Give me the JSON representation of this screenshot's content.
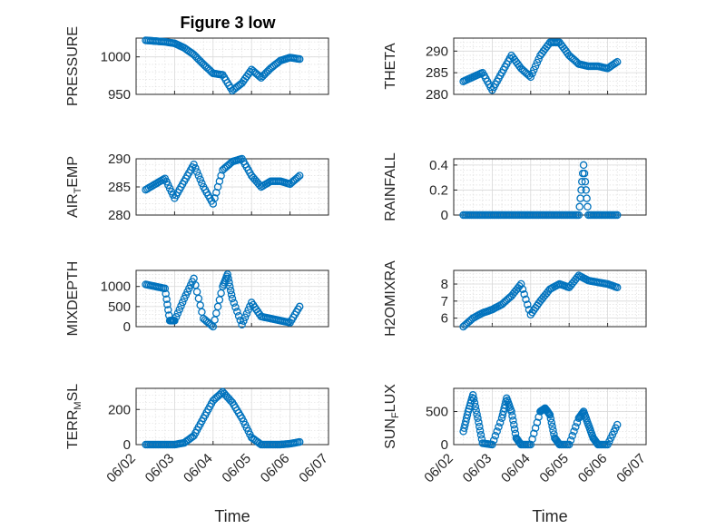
{
  "figure": {
    "title": "Figure 3 low",
    "marker_color": "#0072BD"
  },
  "chart_data": [
    {
      "id": "pressure",
      "type": "scatter",
      "title": "Figure 3 low",
      "ylabel": "PRESSURE",
      "ylabel_parts": [
        "PRESSURE"
      ],
      "xlim": [
        "06/02",
        "06/07"
      ],
      "ylim": [
        950,
        1025
      ],
      "yticks": [
        950,
        1000
      ],
      "xticks_labeled": false,
      "xlabel": "",
      "grid": "on",
      "x": [
        "06/02 06:00",
        "06/02 12:00",
        "06/02 18:00",
        "06/03 00:00",
        "06/03 06:00",
        "06/03 12:00",
        "06/03 18:00",
        "06/04 00:00",
        "06/04 06:00",
        "06/04 12:00",
        "06/04 18:00",
        "06/05 00:00",
        "06/05 06:00",
        "06/05 12:00",
        "06/05 18:00",
        "06/06 00:00",
        "06/06 06:00"
      ],
      "y": [
        1022,
        1021,
        1020,
        1018,
        1012,
        1003,
        990,
        978,
        976,
        955,
        965,
        983,
        972,
        985,
        995,
        999,
        997
      ]
    },
    {
      "id": "theta",
      "type": "scatter",
      "title": "",
      "ylabel": "THETA",
      "ylabel_parts": [
        "THETA"
      ],
      "xlim": [
        "06/02",
        "06/07"
      ],
      "ylim": [
        280,
        293
      ],
      "yticks": [
        280,
        285,
        290
      ],
      "xticks_labeled": false,
      "xlabel": "",
      "grid": "on",
      "x": [
        "06/02 06:00",
        "06/02 12:00",
        "06/02 18:00",
        "06/03 00:00",
        "06/03 06:00",
        "06/03 12:00",
        "06/03 18:00",
        "06/04 00:00",
        "06/04 06:00",
        "06/04 12:00",
        "06/04 18:00",
        "06/05 00:00",
        "06/05 06:00",
        "06/05 12:00",
        "06/05 18:00",
        "06/06 00:00",
        "06/06 06:00"
      ],
      "y": [
        283,
        284,
        285,
        281,
        285,
        289,
        286,
        284,
        289,
        292,
        292,
        289,
        287,
        286.5,
        286.5,
        286,
        287.5
      ]
    },
    {
      "id": "air_temp",
      "type": "scatter",
      "title": "",
      "ylabel": "AIR_TEMP",
      "ylabel_parts": [
        "AIR",
        "T",
        "EMP"
      ],
      "xlim": [
        "06/02",
        "06/07"
      ],
      "ylim": [
        280,
        290
      ],
      "yticks": [
        280,
        285,
        290
      ],
      "xticks_labeled": false,
      "xlabel": "",
      "grid": "on",
      "x": [
        "06/02 06:00",
        "06/02 12:00",
        "06/02 18:00",
        "06/03 00:00",
        "06/03 06:00",
        "06/03 12:00",
        "06/03 18:00",
        "06/04 00:00",
        "06/04 06:00",
        "06/04 12:00",
        "06/04 18:00",
        "06/05 00:00",
        "06/05 06:00",
        "06/05 12:00",
        "06/05 18:00",
        "06/06 00:00",
        "06/06 06:00"
      ],
      "y": [
        284.5,
        285.5,
        286.5,
        283,
        286,
        289,
        285,
        282,
        288,
        289.5,
        290,
        287,
        285,
        286,
        286,
        285.5,
        287
      ]
    },
    {
      "id": "rainfall",
      "type": "scatter",
      "title": "",
      "ylabel": "RAINFALL",
      "ylabel_parts": [
        "RAINFALL"
      ],
      "xlim": [
        "06/02",
        "06/07"
      ],
      "ylim": [
        0,
        0.45
      ],
      "yticks": [
        0,
        0.2,
        0.4
      ],
      "xticks_labeled": false,
      "xlabel": "",
      "grid": "on",
      "x": [
        "06/02 06:00",
        "06/02 12:00",
        "06/02 18:00",
        "06/03 00:00",
        "06/03 06:00",
        "06/03 12:00",
        "06/03 18:00",
        "06/04 00:00",
        "06/04 06:00",
        "06/04 12:00",
        "06/04 18:00",
        "06/05 00:00",
        "06/05 06:00",
        "06/05 09:00",
        "06/05 12:00",
        "06/05 18:00",
        "06/06 00:00",
        "06/06 06:00"
      ],
      "y": [
        0,
        0,
        0,
        0,
        0,
        0,
        0,
        0,
        0,
        0,
        0,
        0,
        0,
        0.4,
        0,
        0,
        0,
        0
      ]
    },
    {
      "id": "mixdepth",
      "type": "scatter",
      "title": "",
      "ylabel": "MIXDEPTH",
      "ylabel_parts": [
        "MIXDEPTH"
      ],
      "xlim": [
        "06/02",
        "06/07"
      ],
      "ylim": [
        0,
        1400
      ],
      "yticks": [
        0,
        500,
        1000
      ],
      "xticks_labeled": false,
      "xlabel": "",
      "grid": "on",
      "x": [
        "06/02 06:00",
        "06/02 12:00",
        "06/02 18:00",
        "06/02 21:00",
        "06/03 00:00",
        "06/03 06:00",
        "06/03 12:00",
        "06/03 18:00",
        "06/04 00:00",
        "06/04 06:00",
        "06/04 09:00",
        "06/04 12:00",
        "06/04 18:00",
        "06/05 00:00",
        "06/05 06:00",
        "06/05 12:00",
        "06/05 18:00",
        "06/06 00:00",
        "06/06 06:00"
      ],
      "y": [
        1050,
        1000,
        950,
        150,
        150,
        700,
        1200,
        200,
        0,
        1000,
        1300,
        700,
        50,
        600,
        250,
        200,
        150,
        100,
        500
      ]
    },
    {
      "id": "h2omixra",
      "type": "scatter",
      "title": "",
      "ylabel": "H2OMIXRA",
      "ylabel_parts": [
        "H2OMIXRA"
      ],
      "xlim": [
        "06/02",
        "06/07"
      ],
      "ylim": [
        5.5,
        8.8
      ],
      "yticks": [
        6,
        7,
        8
      ],
      "xticks_labeled": false,
      "xlabel": "",
      "grid": "on",
      "x": [
        "06/02 06:00",
        "06/02 12:00",
        "06/02 18:00",
        "06/03 00:00",
        "06/03 06:00",
        "06/03 12:00",
        "06/03 18:00",
        "06/04 00:00",
        "06/04 06:00",
        "06/04 12:00",
        "06/04 18:00",
        "06/05 00:00",
        "06/05 06:00",
        "06/05 12:00",
        "06/05 18:00",
        "06/06 00:00",
        "06/06 06:00"
      ],
      "y": [
        5.5,
        6,
        6.3,
        6.5,
        6.8,
        7.3,
        8,
        6.2,
        7,
        7.7,
        8,
        7.8,
        8.5,
        8.2,
        8.1,
        8,
        7.8
      ]
    },
    {
      "id": "terr_msl",
      "type": "scatter",
      "title": "",
      "ylabel": "TERR_MSL",
      "ylabel_parts": [
        "TERR",
        "M",
        "SL"
      ],
      "xlim": [
        "06/02",
        "06/07"
      ],
      "ylim": [
        0,
        320
      ],
      "yticks": [
        0,
        200
      ],
      "xticks": [
        "06/02",
        "06/03",
        "06/04",
        "06/05",
        "06/06",
        "06/07"
      ],
      "xticks_labeled": true,
      "xlabel": "Time",
      "grid": "on",
      "x": [
        "06/02 06:00",
        "06/02 12:00",
        "06/02 18:00",
        "06/03 00:00",
        "06/03 06:00",
        "06/03 12:00",
        "06/03 18:00",
        "06/04 00:00",
        "06/04 06:00",
        "06/04 12:00",
        "06/04 18:00",
        "06/05 00:00",
        "06/05 06:00",
        "06/05 12:00",
        "06/05 18:00",
        "06/06 00:00",
        "06/06 06:00"
      ],
      "y": [
        0,
        0,
        0,
        0,
        10,
        50,
        150,
        250,
        300,
        240,
        150,
        40,
        0,
        0,
        0,
        5,
        15
      ]
    },
    {
      "id": "sun_flux",
      "type": "scatter",
      "title": "",
      "ylabel": "SUN_FLUX",
      "ylabel_parts": [
        "SUN",
        "F",
        "LUX"
      ],
      "xlim": [
        "06/02",
        "06/07"
      ],
      "ylim": [
        0,
        850
      ],
      "yticks": [
        0,
        500
      ],
      "xticks": [
        "06/02",
        "06/03",
        "06/04",
        "06/05",
        "06/06",
        "06/07"
      ],
      "xticks_labeled": true,
      "xlabel": "Time",
      "grid": "on",
      "x": [
        "06/02 06:00",
        "06/02 09:00",
        "06/02 12:00",
        "06/02 15:00",
        "06/02 18:00",
        "06/03 00:00",
        "06/03 06:00",
        "06/03 09:00",
        "06/03 12:00",
        "06/03 15:00",
        "06/03 18:00",
        "06/04 00:00",
        "06/04 06:00",
        "06/04 09:00",
        "06/04 12:00",
        "06/04 15:00",
        "06/04 18:00",
        "06/05 00:00",
        "06/05 06:00",
        "06/05 09:00",
        "06/05 12:00",
        "06/05 15:00",
        "06/05 18:00",
        "06/06 00:00",
        "06/06 06:00"
      ],
      "y": [
        200,
        500,
        750,
        400,
        20,
        0,
        400,
        700,
        500,
        100,
        0,
        0,
        500,
        550,
        450,
        100,
        0,
        0,
        400,
        500,
        300,
        100,
        0,
        0,
        300
      ]
    }
  ]
}
